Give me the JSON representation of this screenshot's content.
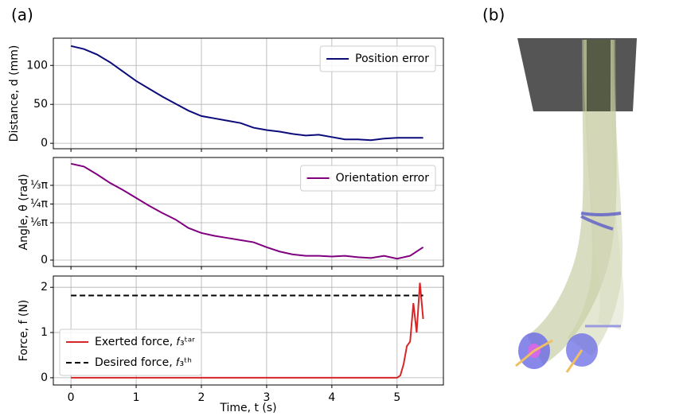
{
  "panel_labels": [
    "(a)",
    "(b)"
  ],
  "chart_data": [
    {
      "type": "line",
      "ylabel": "Distance, d (mm)",
      "x": [
        0,
        0.2,
        0.4,
        0.6,
        0.8,
        1.0,
        1.2,
        1.4,
        1.6,
        1.8,
        2.0,
        2.2,
        2.4,
        2.6,
        2.8,
        3.0,
        3.2,
        3.4,
        3.6,
        3.8,
        4.0,
        4.2,
        4.4,
        4.6,
        4.8,
        5.0,
        5.2,
        5.4
      ],
      "series": [
        {
          "name": "Position error",
          "color": "#0b0b7a",
          "values": [
            125,
            121,
            114,
            104,
            92,
            80,
            70,
            60,
            51,
            42,
            35,
            32,
            29,
            26,
            20,
            17,
            15,
            12,
            10,
            11,
            8,
            5,
            5,
            4,
            6,
            7,
            7,
            7
          ]
        }
      ],
      "xlim": [
        -0.27,
        5.71
      ],
      "xticks": [
        0,
        1,
        2,
        3,
        4,
        5
      ],
      "ylim": [
        -7,
        135
      ],
      "yticks": [
        0,
        50,
        100
      ],
      "grid": true,
      "legend": "upper right"
    },
    {
      "type": "line",
      "ylabel": "Angle, θ (rad)",
      "x": [
        0,
        0.2,
        0.4,
        0.6,
        0.8,
        1.0,
        1.2,
        1.4,
        1.6,
        1.8,
        2.0,
        2.2,
        2.4,
        2.6,
        2.8,
        3.0,
        3.2,
        3.4,
        3.6,
        3.8,
        4.0,
        4.2,
        4.4,
        4.6,
        4.8,
        5.0,
        5.2,
        5.4
      ],
      "series": [
        {
          "name": "Orientation error",
          "color": "#800080",
          "values": [
            1.35,
            1.31,
            1.2,
            1.08,
            0.98,
            0.87,
            0.76,
            0.66,
            0.57,
            0.45,
            0.38,
            0.34,
            0.31,
            0.28,
            0.25,
            0.18,
            0.12,
            0.08,
            0.06,
            0.06,
            0.05,
            0.06,
            0.04,
            0.03,
            0.06,
            0.02,
            0.06,
            0.18
          ]
        }
      ],
      "xlim": [
        -0.27,
        5.71
      ],
      "xticks": [
        0,
        1,
        2,
        3,
        4,
        5
      ],
      "ylim": [
        -0.089,
        1.437
      ],
      "yticks": [
        0,
        {
          "value": 0.5236,
          "label": "⅙π"
        },
        {
          "value": 0.7854,
          "label": "¼π"
        },
        {
          "value": 1.0472,
          "label": "⅓π"
        }
      ],
      "grid": true,
      "legend": "upper right"
    },
    {
      "type": "line",
      "ylabel": "Force, f (N)",
      "xlabel": "Time, t (s)",
      "series": [
        {
          "name": "Exerted force, 𝑓₃ᵗᵃʳ",
          "color": "#d62728",
          "linestyle": "solid",
          "x": [
            0,
            5.0,
            5.05,
            5.1,
            5.15,
            5.2,
            5.25,
            5.3,
            5.35,
            5.4
          ],
          "values": [
            0,
            0,
            0.05,
            0.3,
            0.7,
            0.8,
            1.65,
            1.0,
            2.1,
            1.3
          ]
        },
        {
          "name": "Desired force, 𝑓₃ᵗʰ",
          "color": "#000000",
          "linestyle": "dashed",
          "x": [
            0,
            5.4
          ],
          "values": [
            1.82,
            1.82
          ]
        }
      ],
      "xlim": [
        -0.27,
        5.71
      ],
      "xticks": [
        0,
        1,
        2,
        3,
        4,
        5
      ],
      "show_xtick_labels": true,
      "ylim": [
        -0.16,
        2.25
      ],
      "yticks": [
        0,
        1,
        2
      ],
      "grid": true,
      "legend": "lower left"
    }
  ]
}
